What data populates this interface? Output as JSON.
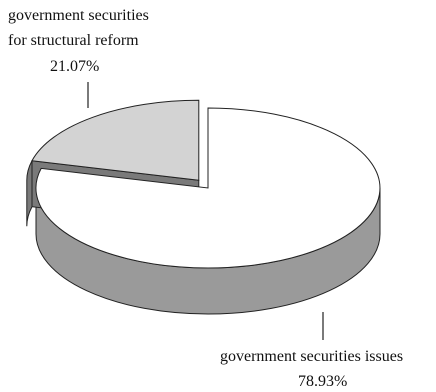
{
  "chart_data": {
    "type": "pie",
    "title": "",
    "labels": [
      {
        "lines": [
          "government securities",
          "for structural reform"
        ],
        "pct": "21.07%"
      },
      {
        "lines": [
          "government securities issues"
        ],
        "pct": "78.93%"
      }
    ],
    "slices": [
      {
        "name": "government securities for structural reform",
        "value": 21.07,
        "color": "#d3d3d3"
      },
      {
        "name": "government securities issues",
        "value": 78.93,
        "color": "#ffffff"
      }
    ],
    "side_colors": {
      "light": "#9a9a9a",
      "dark": "#7a7a7a"
    },
    "exploded": "government securities for structural reform"
  }
}
